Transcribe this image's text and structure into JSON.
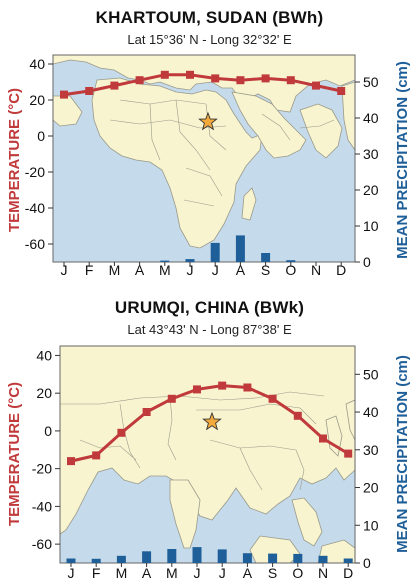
{
  "colors": {
    "temperature": "#c0393b",
    "precipitation": "#1f5f99",
    "ocean": "#c5daea",
    "land": "#f8f4cf",
    "border": "#9a9a8a",
    "star": "#f2a93b"
  },
  "map_icons": [
    "africa-middle-east-map",
    "asia-map",
    "location-star-icon"
  ],
  "chart_data": [
    {
      "type": "line+bar",
      "title": "KHARTOUM, SUDAN  (BWh)",
      "subtitle": "Lat 15°36' N - Long 32°32' E",
      "categories": [
        "J",
        "F",
        "M",
        "A",
        "M",
        "J",
        "J",
        "A",
        "S",
        "O",
        "N",
        "D"
      ],
      "ylabel_left": "TEMPERATURE (°C)",
      "ylabel_right": "MEAN PRECIPITATION (cm)",
      "ylim_left": [
        -70,
        45
      ],
      "ylim_right": [
        0,
        57.5
      ],
      "yticks_left": [
        "40",
        "20",
        "0",
        "-20",
        "-40",
        "-60"
      ],
      "yticks_right": [
        "50",
        "40",
        "30",
        "20",
        "10",
        "0"
      ],
      "series": [
        {
          "name": "Temperature",
          "axis": "left",
          "kind": "line",
          "values": [
            23,
            25,
            28,
            31,
            34,
            34,
            32,
            31,
            32,
            31,
            28,
            25
          ]
        },
        {
          "name": "Precipitation",
          "axis": "right",
          "kind": "bar",
          "values": [
            0,
            0,
            0,
            0,
            0.4,
            0.8,
            5.3,
            7.4,
            2.5,
            0.5,
            0,
            0
          ]
        }
      ],
      "grid": false,
      "legend": "none"
    },
    {
      "type": "line+bar",
      "title": "URUMQI, CHINA (BWk)",
      "subtitle": "Lat 43°43' N - Long 87°38' E",
      "categories": [
        "J",
        "F",
        "M",
        "A",
        "M",
        "J",
        "J",
        "A",
        "S",
        "O",
        "N",
        "D"
      ],
      "ylabel_left": "TEMPERATURE (°C)",
      "ylabel_right": "MEAN PRECIPITATION (cm)",
      "ylim_left": [
        -70,
        45
      ],
      "ylim_right": [
        0,
        57.5
      ],
      "yticks_left": [
        "40",
        "20",
        "0",
        "-20",
        "-40",
        "-60"
      ],
      "yticks_right": [
        "50",
        "40",
        "30",
        "20",
        "10",
        "0"
      ],
      "series": [
        {
          "name": "Temperature",
          "axis": "left",
          "kind": "line",
          "values": [
            -16,
            -13,
            -1,
            10,
            17,
            22,
            24,
            23,
            17,
            8,
            -4,
            -12
          ]
        },
        {
          "name": "Precipitation",
          "axis": "right",
          "kind": "bar",
          "values": [
            1.2,
            1.1,
            1.9,
            3.1,
            3.7,
            4.2,
            3.6,
            2.6,
            2.5,
            2.4,
            1.9,
            1.2
          ]
        }
      ],
      "grid": false,
      "legend": "none"
    }
  ]
}
